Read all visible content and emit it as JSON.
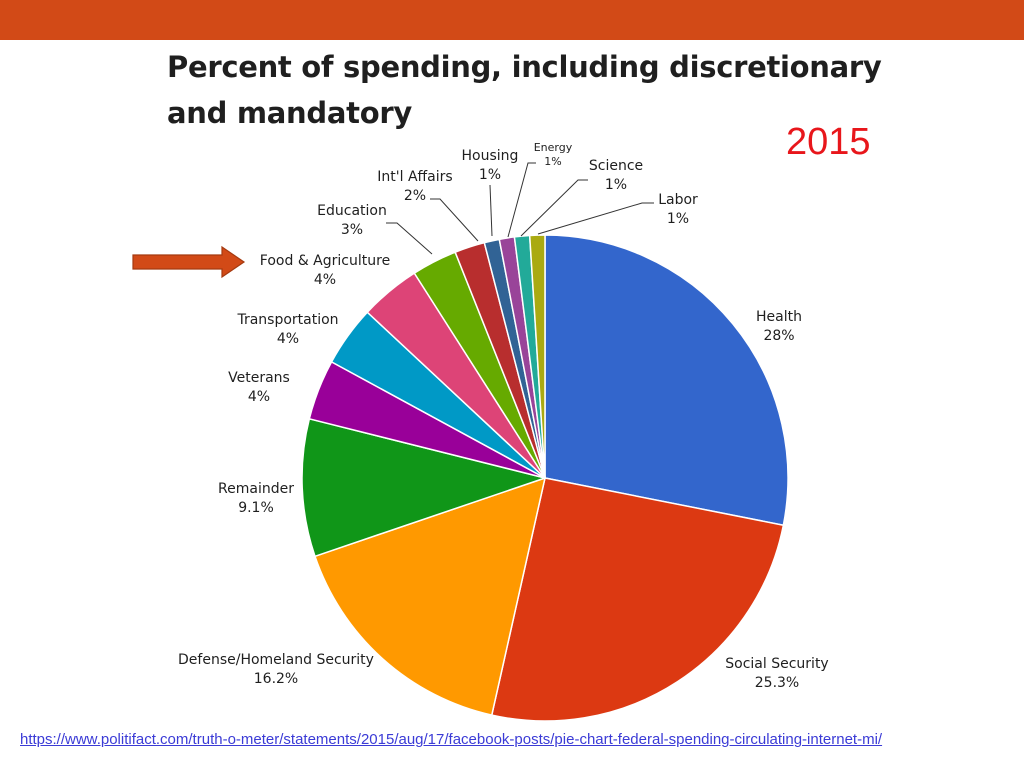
{
  "title_line1": "Percent of spending, including discretionary",
  "title_line2": "and mandatory",
  "year": "2015",
  "source_url": "https://www.politifact.com/truth-o-meter/statements/2015/aug/17/facebook-posts/pie-chart-federal-spending-circulating-internet-mi/",
  "colors": {
    "top_bar": "#d24a17",
    "year": "#e8161b",
    "arrow": "#d24a17",
    "link": "#3b3bd6"
  },
  "chart_data": {
    "type": "pie",
    "title": "Percent of spending, including discretionary and mandatory",
    "start_angle": "12 o'clock",
    "direction": "clockwise",
    "highlighted_slice": "Food & Agriculture",
    "slices": [
      {
        "label": "Health",
        "value_label": "28%",
        "value": 28,
        "color": "#3366cc"
      },
      {
        "label": "Social Security",
        "value_label": "25.3%",
        "value": 25.3,
        "color": "#dc3912"
      },
      {
        "label": "Defense/Homeland Security",
        "value_label": "16.2%",
        "value": 16.2,
        "color": "#ff9900"
      },
      {
        "label": "Remainder",
        "value_label": "9.1%",
        "value": 9.1,
        "color": "#109618"
      },
      {
        "label": "Veterans",
        "value_label": "4%",
        "value": 4,
        "color": "#990099"
      },
      {
        "label": "Transportation",
        "value_label": "4%",
        "value": 4,
        "color": "#0099c6"
      },
      {
        "label": "Food & Agriculture",
        "value_label": "4%",
        "value": 4,
        "color": "#dd4477"
      },
      {
        "label": "Education",
        "value_label": "3%",
        "value": 3,
        "color": "#66aa00"
      },
      {
        "label": "Int'l Affairs",
        "value_label": "2%",
        "value": 2,
        "color": "#b82e2e"
      },
      {
        "label": "Housing",
        "value_label": "1%",
        "value": 1,
        "color": "#316395"
      },
      {
        "label": "Energy",
        "value_label": "1%",
        "value": 1,
        "color": "#994499"
      },
      {
        "label": "Science",
        "value_label": "1%",
        "value": 1,
        "color": "#22aa99"
      },
      {
        "label": "Labor",
        "value_label": "1%",
        "value": 1,
        "color": "#aaaa11"
      }
    ]
  }
}
